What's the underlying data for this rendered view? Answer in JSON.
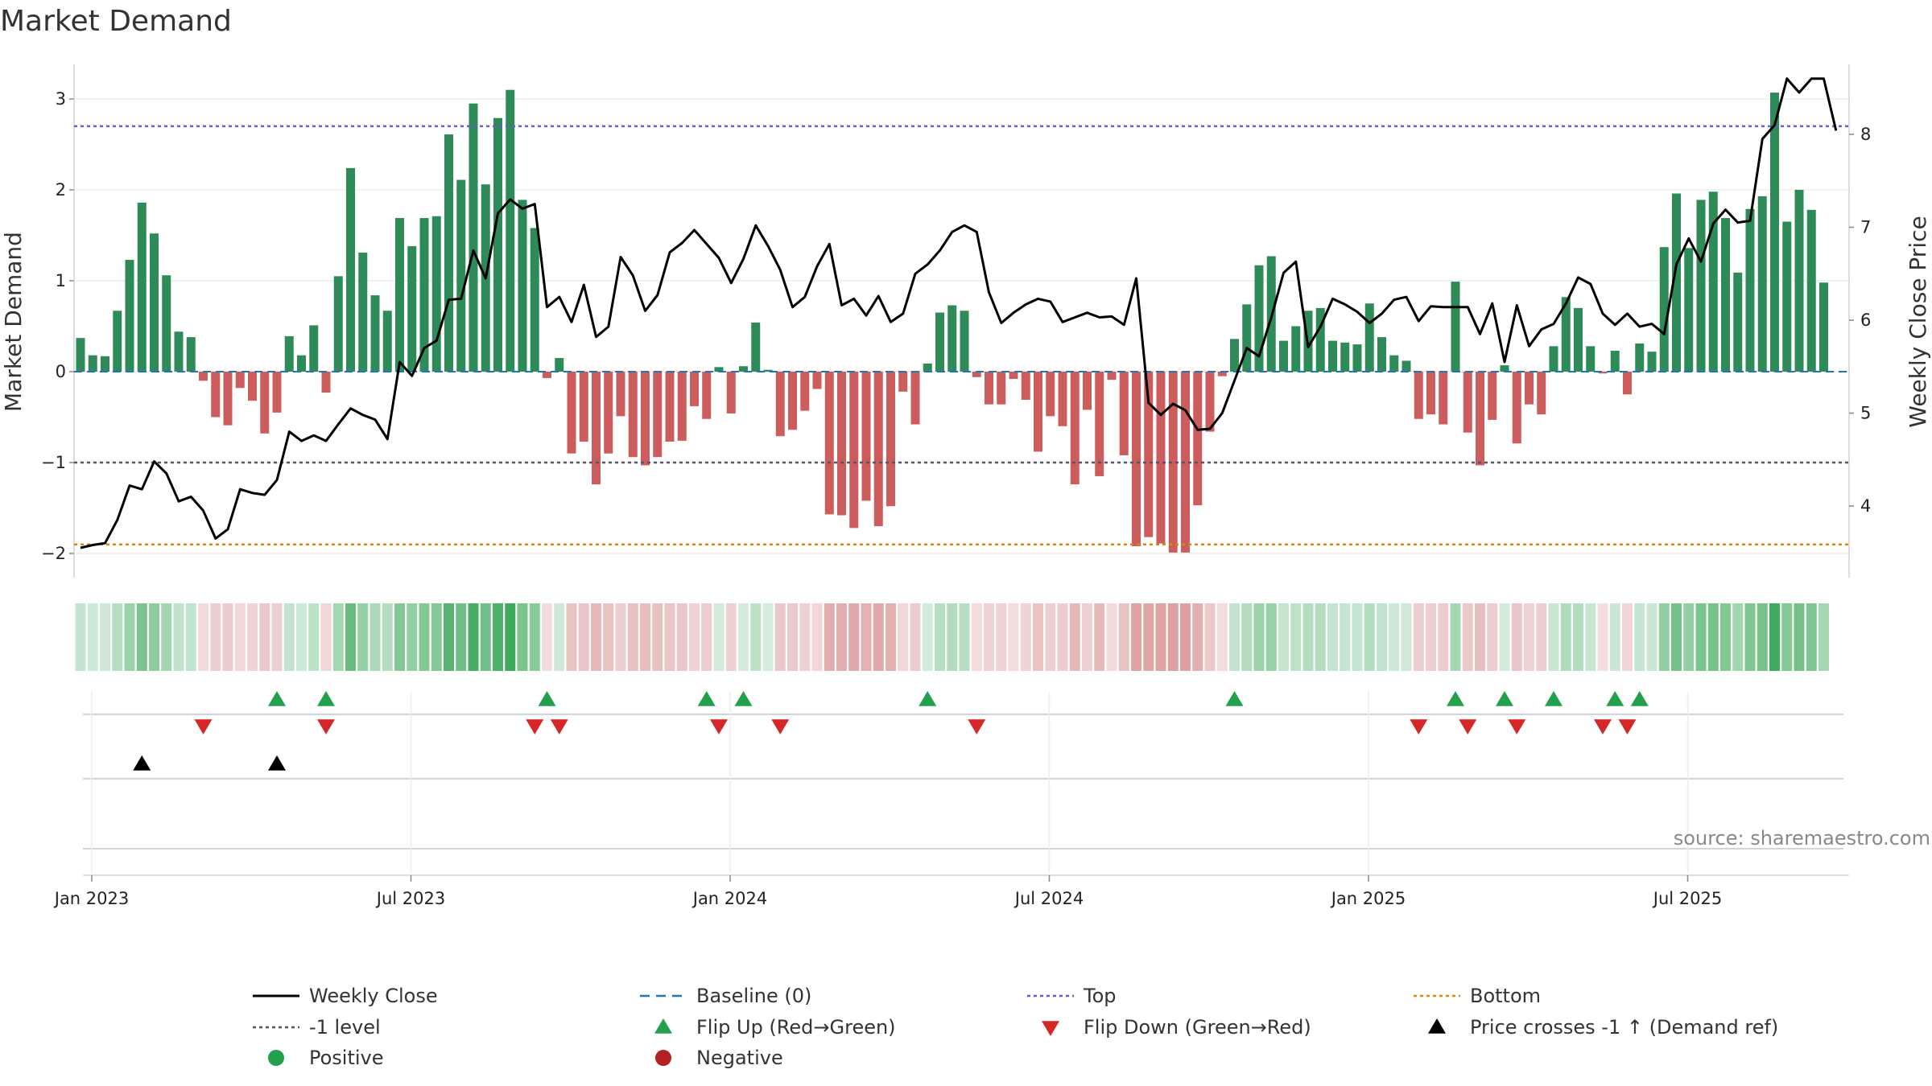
{
  "title": "Market Demand",
  "source": "source: sharemaestro.com",
  "colors": {
    "positive_bar": "#2e8b57",
    "negative_bar": "#cd5c5c",
    "price_line": "#000000",
    "baseline": "#1f77b4",
    "top": "#6a5acd",
    "minus1": "#555566",
    "bottom": "#d4880f",
    "flip_up": "#22a04b",
    "flip_down": "#d62728",
    "cross": "#000000",
    "negative_marker": "#b22222"
  },
  "chart_data": {
    "type": "bar+line",
    "title": "Market Demand",
    "ylabel_left": "Market Demand",
    "ylabel_right": "Weekly Close Price",
    "ylim_left": [
      -2.2,
      3.3
    ],
    "ylim_right": [
      3.3,
      8.8
    ],
    "yticks_left": [
      "3",
      "2",
      "1",
      "0",
      "−1",
      "−2"
    ],
    "yticks_left_values": [
      3,
      2,
      1,
      0,
      -1,
      -2
    ],
    "yticks_right": [
      "8",
      "7",
      "6",
      "5",
      "4"
    ],
    "yticks_right_values": [
      8,
      7,
      6,
      5,
      4
    ],
    "date_ticks": [
      "Jan 2023",
      "Jul 2023",
      "Jan 2024",
      "Jul 2024",
      "Jan 2025",
      "Jul 2025"
    ],
    "date_tick_weeks": [
      0,
      26,
      52,
      78,
      104,
      130
    ],
    "levels": {
      "baseline": 0,
      "top": 2.7,
      "minus1": -1.0,
      "bottom": -1.9
    },
    "demand_series": {
      "name": "Market Demand",
      "values": [
        0.37,
        0.18,
        0.17,
        0.67,
        1.23,
        1.86,
        1.52,
        1.06,
        0.44,
        0.38,
        -0.1,
        -0.5,
        -0.59,
        -0.18,
        -0.32,
        -0.68,
        -0.45,
        0.39,
        0.18,
        0.51,
        -0.23,
        1.05,
        2.24,
        1.31,
        0.84,
        0.67,
        1.69,
        1.38,
        1.69,
        1.71,
        2.61,
        2.11,
        2.95,
        2.06,
        2.79,
        3.1,
        1.89,
        1.58,
        -0.07,
        0.15,
        -0.9,
        -0.77,
        -1.24,
        -0.9,
        -0.49,
        -0.94,
        -1.03,
        -0.94,
        -0.77,
        -0.76,
        -0.38,
        -0.52,
        0.05,
        -0.46,
        0.06,
        0.54,
        0.02,
        -0.71,
        -0.64,
        -0.43,
        -0.19,
        -1.57,
        -1.58,
        -1.72,
        -1.42,
        -1.7,
        -1.48,
        -0.22,
        -0.58,
        0.09,
        0.65,
        0.73,
        0.67,
        -0.06,
        -0.36,
        -0.36,
        -0.08,
        -0.31,
        -0.88,
        -0.49,
        -0.6,
        -1.24,
        -0.42,
        -1.15,
        -0.09,
        -0.92,
        -1.92,
        -1.82,
        -1.89,
        -1.99,
        -1.99,
        -1.47,
        -0.66,
        -0.05,
        0.36,
        0.74,
        1.17,
        1.27,
        0.34,
        0.5,
        0.67,
        0.7,
        0.34,
        0.32,
        0.3,
        0.75,
        0.38,
        0.18,
        0.12,
        -0.52,
        -0.47,
        -0.58,
        0.99,
        -0.67,
        -1.03,
        -0.53,
        0.07,
        -0.79,
        -0.36,
        -0.47,
        0.28,
        0.82,
        0.7,
        0.28,
        -0.02,
        0.23,
        -0.25,
        0.31,
        0.22,
        1.37,
        1.96,
        1.36,
        1.89,
        1.98,
        1.69,
        1.09,
        1.79,
        1.93,
        3.07,
        1.65,
        2.0,
        1.78,
        0.98
      ]
    },
    "price_series": {
      "name": "Weekly Close",
      "values": [
        3.55,
        3.58,
        3.6,
        3.85,
        4.22,
        4.18,
        4.48,
        4.35,
        4.05,
        4.1,
        3.95,
        3.65,
        3.75,
        4.18,
        4.14,
        4.12,
        4.28,
        4.8,
        4.7,
        4.76,
        4.7,
        4.88,
        5.05,
        4.98,
        4.93,
        4.72,
        5.55,
        5.4,
        5.7,
        5.78,
        6.22,
        6.23,
        6.75,
        6.45,
        7.15,
        7.3,
        7.2,
        7.25,
        6.14,
        6.25,
        5.98,
        6.38,
        5.82,
        5.93,
        6.68,
        6.48,
        6.1,
        6.27,
        6.73,
        6.83,
        6.97,
        6.82,
        6.67,
        6.4,
        6.66,
        7.02,
        6.8,
        6.54,
        6.14,
        6.25,
        6.58,
        6.82,
        6.16,
        6.23,
        6.05,
        6.26,
        5.98,
        6.07,
        6.5,
        6.6,
        6.75,
        6.95,
        7.02,
        6.95,
        6.3,
        5.97,
        6.08,
        6.17,
        6.23,
        6.2,
        5.98,
        6.03,
        6.08,
        6.03,
        6.04,
        5.95,
        6.45,
        5.11,
        4.98,
        5.1,
        5.03,
        4.82,
        4.83,
        5.0,
        5.35,
        5.7,
        5.61,
        6.03,
        6.51,
        6.63,
        5.71,
        5.93,
        6.23,
        6.17,
        6.09,
        5.97,
        6.07,
        6.22,
        6.25,
        5.99,
        6.15,
        6.14,
        6.14,
        6.14,
        5.85,
        6.18,
        5.55,
        6.16,
        5.72,
        5.9,
        5.96,
        6.18,
        6.46,
        6.39,
        6.07,
        5.95,
        6.07,
        5.93,
        5.96,
        5.85,
        6.6,
        6.88,
        6.63,
        7.04,
        7.19,
        7.05,
        7.07,
        7.95,
        8.1,
        8.6,
        8.45,
        8.6,
        8.6,
        8.04
      ]
    },
    "flip_up_weeks": [
      16,
      20,
      38,
      51,
      54,
      69,
      94,
      112,
      116,
      120,
      125,
      127
    ],
    "flip_down_weeks": [
      10,
      20,
      37,
      39,
      52,
      57,
      73,
      109,
      113,
      117,
      124,
      126
    ],
    "price_cross_weeks": [
      5,
      16
    ]
  },
  "legend": [
    {
      "label": "Weekly Close",
      "kind": "line",
      "color": "#000000"
    },
    {
      "label": "Baseline (0)",
      "kind": "dash",
      "color": "#1f77b4"
    },
    {
      "label": "Top",
      "kind": "dot",
      "color": "#6a5acd"
    },
    {
      "label": "Bottom",
      "kind": "dot",
      "color": "#d4880f"
    },
    {
      "label": "-1 level",
      "kind": "dot",
      "color": "#555566"
    },
    {
      "label": "Flip Up (Red→Green)",
      "kind": "tri-up",
      "color": "#22a04b"
    },
    {
      "label": "Flip Down (Green→Red)",
      "kind": "tri-down",
      "color": "#d62728"
    },
    {
      "label": "Price crosses -1 ↑ (Demand ref)",
      "kind": "tri-up",
      "color": "#000000"
    },
    {
      "label": "Positive",
      "kind": "circle",
      "color": "#22a04b"
    },
    {
      "label": "Negative",
      "kind": "circle",
      "color": "#b22222"
    }
  ]
}
